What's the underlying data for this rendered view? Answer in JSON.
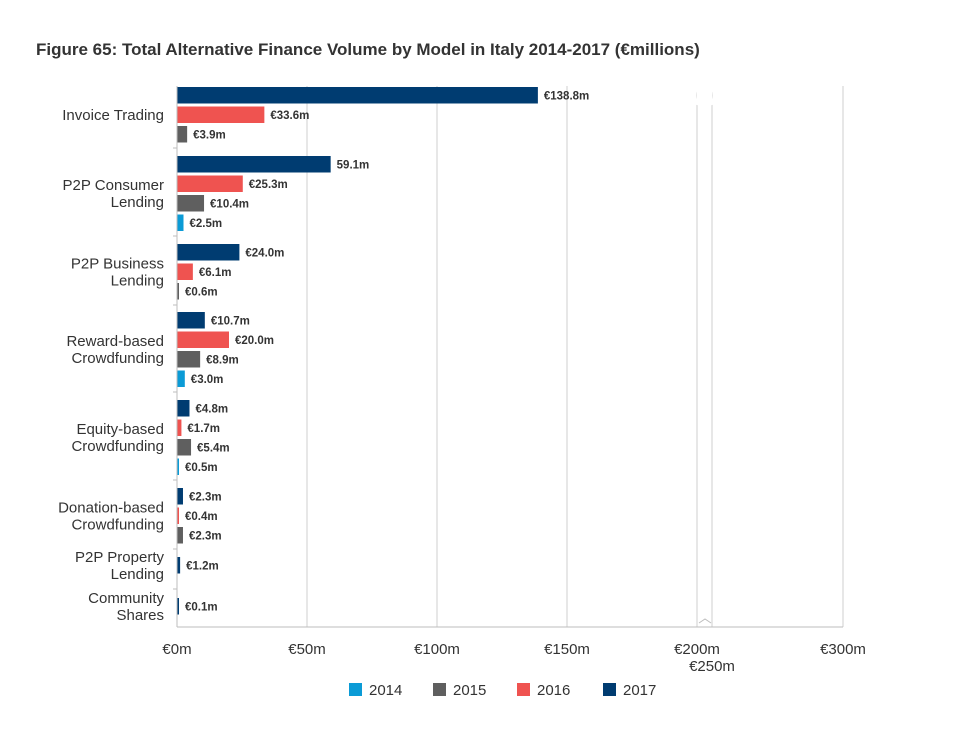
{
  "chart_data": {
    "type": "bar",
    "orientation": "horizontal",
    "title": "Figure 65: Total Alternative Finance Volume by Model in Italy 2014-2017 (€millions)",
    "xlabel": "",
    "ylabel": "",
    "categories": [
      "Invoice Trading",
      "P2P Consumer Lending",
      "P2P Business Lending",
      "Reward-based Crowdfunding",
      "Equity-based Crowdfunding",
      "Donation-based Crowdfunding",
      "P2P Property Lending",
      "Community Shares"
    ],
    "category_lines": [
      [
        "Invoice Trading"
      ],
      [
        "P2P Consumer",
        "Lending"
      ],
      [
        "P2P Business",
        "Lending"
      ],
      [
        "Reward-based",
        "Crowdfunding"
      ],
      [
        "Equity-based",
        "Crowdfunding"
      ],
      [
        "Donation-based",
        "Crowdfunding"
      ],
      [
        "P2P Property",
        "Lending"
      ],
      [
        "Community",
        "Shares"
      ]
    ],
    "series": [
      {
        "name": "2017",
        "color": "#003c71",
        "values": [
          138.8,
          59.1,
          24.0,
          10.7,
          4.8,
          2.3,
          1.2,
          0.1
        ],
        "labels": [
          "€138.8m",
          "59.1m",
          "€24.0m",
          "€10.7m",
          "€4.8m",
          "€2.3m",
          "€1.2m",
          "€0.1m"
        ]
      },
      {
        "name": "2016",
        "color": "#ef5350",
        "values": [
          33.6,
          25.3,
          6.1,
          20.0,
          1.7,
          0.4,
          null,
          null
        ],
        "labels": [
          "€33.6m",
          "€25.3m",
          "€6.1m",
          "€20.0m",
          "€1.7m",
          "€0.4m",
          null,
          null
        ]
      },
      {
        "name": "2015",
        "color": "#5f5f5f",
        "values": [
          3.9,
          10.4,
          0.6,
          8.9,
          5.4,
          2.3,
          null,
          null
        ],
        "labels": [
          "€3.9m",
          "€10.4m",
          "€0.6m",
          "€8.9m",
          "€5.4m",
          "€2.3m",
          null,
          null
        ]
      },
      {
        "name": "2014",
        "color": "#0b9bd6",
        "values": [
          null,
          2.5,
          null,
          3.0,
          0.5,
          null,
          null,
          null
        ],
        "labels": [
          null,
          "€2.5m",
          null,
          "€3.0m",
          "€0.5m",
          null,
          null,
          null
        ]
      }
    ],
    "x_ticks": [
      {
        "value": 0,
        "label": "€0m"
      },
      {
        "value": 50,
        "label": "€50m"
      },
      {
        "value": 100,
        "label": "€100m"
      },
      {
        "value": 150,
        "label": "€150m"
      },
      {
        "value": 200,
        "label": "€200m"
      },
      {
        "value": 250,
        "label": "€250m"
      },
      {
        "value": 300,
        "label": "€300m"
      }
    ],
    "xlim": [
      0,
      300
    ],
    "axis_break": {
      "from": 200,
      "to": 250
    },
    "grid": true,
    "legend": {
      "position": "bottom",
      "order": [
        "2014",
        "2015",
        "2016",
        "2017"
      ]
    }
  }
}
